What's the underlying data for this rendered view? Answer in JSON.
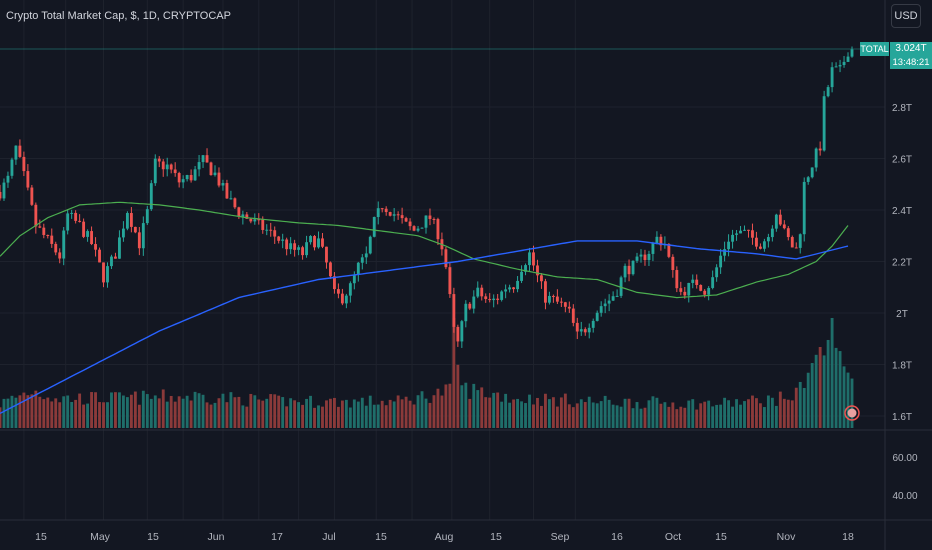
{
  "header": {
    "title": "Crypto Total Market Cap, $, 1D, CRYPTOCAP",
    "currency_button": "USD"
  },
  "price_tag": {
    "name": "TOTAL",
    "value": "3.024T",
    "countdown": "13:48:21"
  },
  "colors": {
    "up": "#26a69a",
    "down": "#ef5350",
    "ma_fast": "#4caf50",
    "ma_slow": "#2962ff",
    "vol_up": "#1f6e6a",
    "vol_down": "#8b3a3a",
    "background": "#131722"
  },
  "chart_data": {
    "type": "candlestick",
    "symbol": "Crypto Total Market Cap",
    "interval": "1D",
    "currency": "$",
    "x_tick_labels": [
      "15",
      "May",
      "15",
      "Jun",
      "17",
      "Jul",
      "15",
      "Aug",
      "15",
      "Sep",
      "16",
      "Oct",
      "15",
      "Nov",
      "18"
    ],
    "price_axis": {
      "tick_labels": [
        "2.8T",
        "2.6T",
        "2.4T",
        "2.2T",
        "2T",
        "1.8T",
        "1.6T"
      ],
      "tick_values": [
        2.8,
        2.6,
        2.4,
        2.2,
        2.0,
        1.8,
        1.6
      ],
      "range": [
        1.58,
        3.05
      ]
    },
    "oscillator_axis": {
      "tick_labels": [
        "60.00",
        "40.00"
      ],
      "tick_values": [
        60,
        40
      ]
    },
    "last_close": 3.024,
    "series": [
      {
        "name": "price_anchors",
        "points": [
          [
            0,
            2.47
          ],
          [
            4,
            2.52
          ],
          [
            8,
            2.64
          ],
          [
            12,
            2.53
          ],
          [
            18,
            2.34
          ],
          [
            22,
            2.3
          ],
          [
            26,
            2.26
          ],
          [
            30,
            2.22
          ],
          [
            34,
            2.38
          ],
          [
            40,
            2.34
          ],
          [
            46,
            2.27
          ],
          [
            52,
            2.14
          ],
          [
            58,
            2.23
          ],
          [
            64,
            2.4
          ],
          [
            70,
            2.27
          ],
          [
            74,
            2.39
          ],
          [
            78,
            2.58
          ],
          [
            84,
            2.57
          ],
          [
            90,
            2.51
          ],
          [
            96,
            2.53
          ],
          [
            102,
            2.59
          ],
          [
            108,
            2.54
          ],
          [
            114,
            2.45
          ],
          [
            120,
            2.39
          ],
          [
            126,
            2.36
          ],
          [
            132,
            2.33
          ],
          [
            138,
            2.3
          ],
          [
            146,
            2.25
          ],
          [
            152,
            2.23
          ],
          [
            156,
            2.28
          ],
          [
            160,
            2.28
          ],
          [
            164,
            2.19
          ],
          [
            168,
            2.07
          ],
          [
            172,
            2.06
          ],
          [
            176,
            2.1
          ],
          [
            180,
            2.18
          ],
          [
            184,
            2.22
          ],
          [
            188,
            2.35
          ],
          [
            192,
            2.42
          ],
          [
            196,
            2.4
          ],
          [
            200,
            2.37
          ],
          [
            204,
            2.34
          ],
          [
            208,
            2.32
          ],
          [
            212,
            2.35
          ],
          [
            216,
            2.37
          ],
          [
            220,
            2.31
          ],
          [
            222,
            2.26
          ],
          [
            224,
            2.18
          ],
          [
            228,
            1.93
          ],
          [
            230,
            1.88
          ],
          [
            234,
            2.02
          ],
          [
            240,
            2.08
          ],
          [
            246,
            2.04
          ],
          [
            250,
            2.06
          ],
          [
            254,
            2.1
          ],
          [
            258,
            2.11
          ],
          [
            262,
            2.18
          ],
          [
            266,
            2.23
          ],
          [
            270,
            2.14
          ],
          [
            274,
            2.06
          ],
          [
            278,
            2.05
          ],
          [
            282,
            2.03
          ],
          [
            286,
            2.0
          ],
          [
            290,
            1.91
          ],
          [
            294,
            1.94
          ],
          [
            298,
            1.99
          ],
          [
            302,
            2.03
          ],
          [
            306,
            2.05
          ],
          [
            310,
            2.09
          ],
          [
            314,
            2.17
          ],
          [
            318,
            2.18
          ],
          [
            322,
            2.21
          ],
          [
            326,
            2.24
          ],
          [
            330,
            2.29
          ],
          [
            334,
            2.27
          ],
          [
            338,
            2.15
          ],
          [
            342,
            2.08
          ],
          [
            346,
            2.1
          ],
          [
            350,
            2.12
          ],
          [
            354,
            2.09
          ],
          [
            358,
            2.13
          ],
          [
            362,
            2.22
          ],
          [
            366,
            2.29
          ],
          [
            370,
            2.31
          ],
          [
            374,
            2.31
          ],
          [
            378,
            2.29
          ],
          [
            382,
            2.27
          ],
          [
            386,
            2.3
          ],
          [
            390,
            2.4
          ],
          [
            394,
            2.31
          ],
          [
            398,
            2.26
          ],
          [
            401,
            2.24
          ],
          [
            404,
            2.5
          ],
          [
            408,
            2.58
          ],
          [
            412,
            2.65
          ],
          [
            414,
            2.82
          ],
          [
            418,
            2.94
          ],
          [
            422,
            2.94
          ],
          [
            426,
            3.02
          ],
          [
            428,
            3.024
          ]
        ]
      },
      {
        "name": "volume_anchors",
        "points": [
          [
            0,
            0.22
          ],
          [
            16,
            0.34
          ],
          [
            30,
            0.27
          ],
          [
            60,
            0.27
          ],
          [
            80,
            0.28
          ],
          [
            100,
            0.29
          ],
          [
            130,
            0.25
          ],
          [
            160,
            0.24
          ],
          [
            200,
            0.24
          ],
          [
            226,
            0.34
          ],
          [
            228,
            0.9
          ],
          [
            232,
            0.36
          ],
          [
            260,
            0.27
          ],
          [
            300,
            0.24
          ],
          [
            330,
            0.23
          ],
          [
            360,
            0.22
          ],
          [
            390,
            0.26
          ],
          [
            400,
            0.3
          ],
          [
            406,
            0.55
          ],
          [
            414,
            0.7
          ],
          [
            418,
            0.98
          ],
          [
            422,
            0.6
          ],
          [
            428,
            0.45
          ]
        ]
      },
      {
        "name": "ma_fast_anchors",
        "points": [
          [
            0,
            2.22
          ],
          [
            10,
            2.3
          ],
          [
            24,
            2.37
          ],
          [
            40,
            2.42
          ],
          [
            60,
            2.43
          ],
          [
            80,
            2.42
          ],
          [
            100,
            2.4
          ],
          [
            124,
            2.37
          ],
          [
            150,
            2.35
          ],
          [
            170,
            2.34
          ],
          [
            190,
            2.32
          ],
          [
            210,
            2.3
          ],
          [
            224,
            2.26
          ],
          [
            238,
            2.21
          ],
          [
            260,
            2.17
          ],
          [
            280,
            2.14
          ],
          [
            300,
            2.13
          ],
          [
            320,
            2.08
          ],
          [
            340,
            2.06
          ],
          [
            360,
            2.07
          ],
          [
            380,
            2.12
          ],
          [
            396,
            2.15
          ],
          [
            410,
            2.2
          ],
          [
            418,
            2.26
          ],
          [
            426,
            2.34
          ]
        ]
      },
      {
        "name": "ma_slow_anchors",
        "points": [
          [
            0,
            1.61
          ],
          [
            40,
            1.77
          ],
          [
            80,
            1.93
          ],
          [
            120,
            2.06
          ],
          [
            160,
            2.13
          ],
          [
            200,
            2.17
          ],
          [
            230,
            2.2
          ],
          [
            260,
            2.24
          ],
          [
            290,
            2.28
          ],
          [
            320,
            2.28
          ],
          [
            350,
            2.25
          ],
          [
            380,
            2.23
          ],
          [
            400,
            2.21
          ],
          [
            426,
            2.26
          ]
        ]
      }
    ]
  }
}
